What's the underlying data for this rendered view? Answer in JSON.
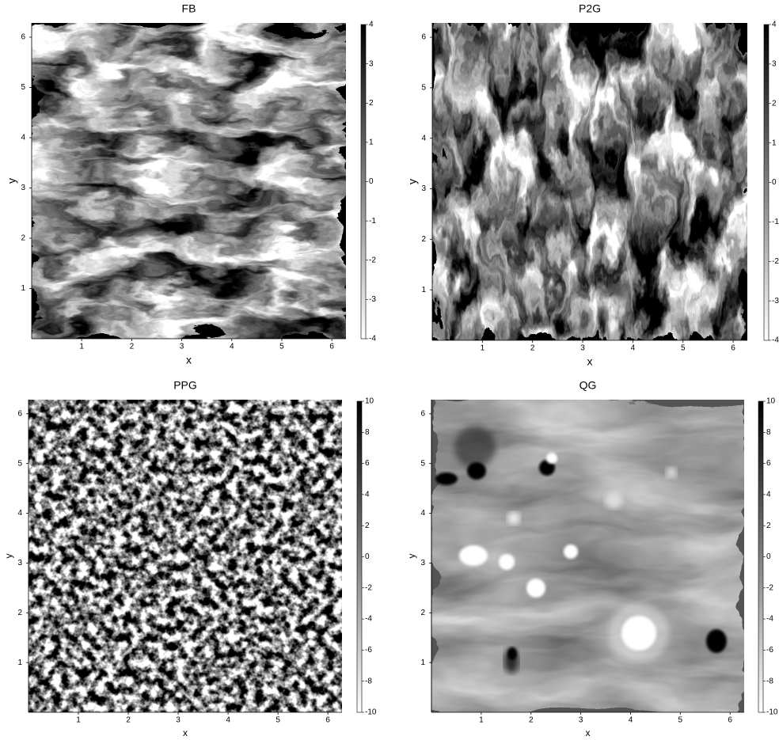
{
  "chart_data": [
    {
      "type": "heatmap",
      "title": "FB",
      "xlabel": "x",
      "ylabel": "y",
      "xlim": [
        0,
        6.283
      ],
      "xticks": [
        1,
        2,
        3,
        4,
        5,
        6
      ],
      "ylim": [
        0,
        6.283
      ],
      "yticks": [
        1,
        2,
        3,
        4,
        5,
        6
      ],
      "colormap": "gray_r",
      "clim": [
        -4,
        4
      ],
      "cticks": [
        -4,
        -3,
        -2,
        -1,
        0,
        1,
        2,
        3,
        4
      ]
    },
    {
      "type": "heatmap",
      "title": "P2G",
      "xlabel": "x",
      "ylabel": "y",
      "xlim": [
        0,
        6.283
      ],
      "xticks": [
        1,
        2,
        3,
        4,
        5,
        6
      ],
      "ylim": [
        0,
        6.283
      ],
      "yticks": [
        1,
        2,
        3,
        4,
        5,
        6
      ],
      "colormap": "gray_r",
      "clim": [
        -4,
        4
      ],
      "cticks": [
        -4,
        -3,
        -2,
        -1,
        0,
        1,
        2,
        3,
        4
      ]
    },
    {
      "type": "heatmap",
      "title": "PPG",
      "xlabel": "x",
      "ylabel": "y",
      "xlim": [
        0,
        6.283
      ],
      "xticks": [
        1,
        2,
        3,
        4,
        5,
        6
      ],
      "ylim": [
        0,
        6.283
      ],
      "yticks": [
        1,
        2,
        3,
        4,
        5,
        6
      ],
      "colormap": "gray_r",
      "clim": [
        -10,
        10
      ],
      "cticks": [
        -10,
        -8,
        -6,
        -4,
        -2,
        0,
        2,
        4,
        6,
        8,
        10
      ]
    },
    {
      "type": "heatmap",
      "title": "QG",
      "xlabel": "x",
      "ylabel": "y",
      "xlim": [
        0,
        6.283
      ],
      "xticks": [
        1,
        2,
        3,
        4,
        5,
        6
      ],
      "ylim": [
        0,
        6.283
      ],
      "yticks": [
        1,
        2,
        3,
        4,
        5,
        6
      ],
      "colormap": "gray_r",
      "clim": [
        -10,
        10
      ],
      "cticks": [
        -10,
        -8,
        -6,
        -4,
        -2,
        0,
        2,
        4,
        6,
        8,
        10
      ]
    }
  ]
}
